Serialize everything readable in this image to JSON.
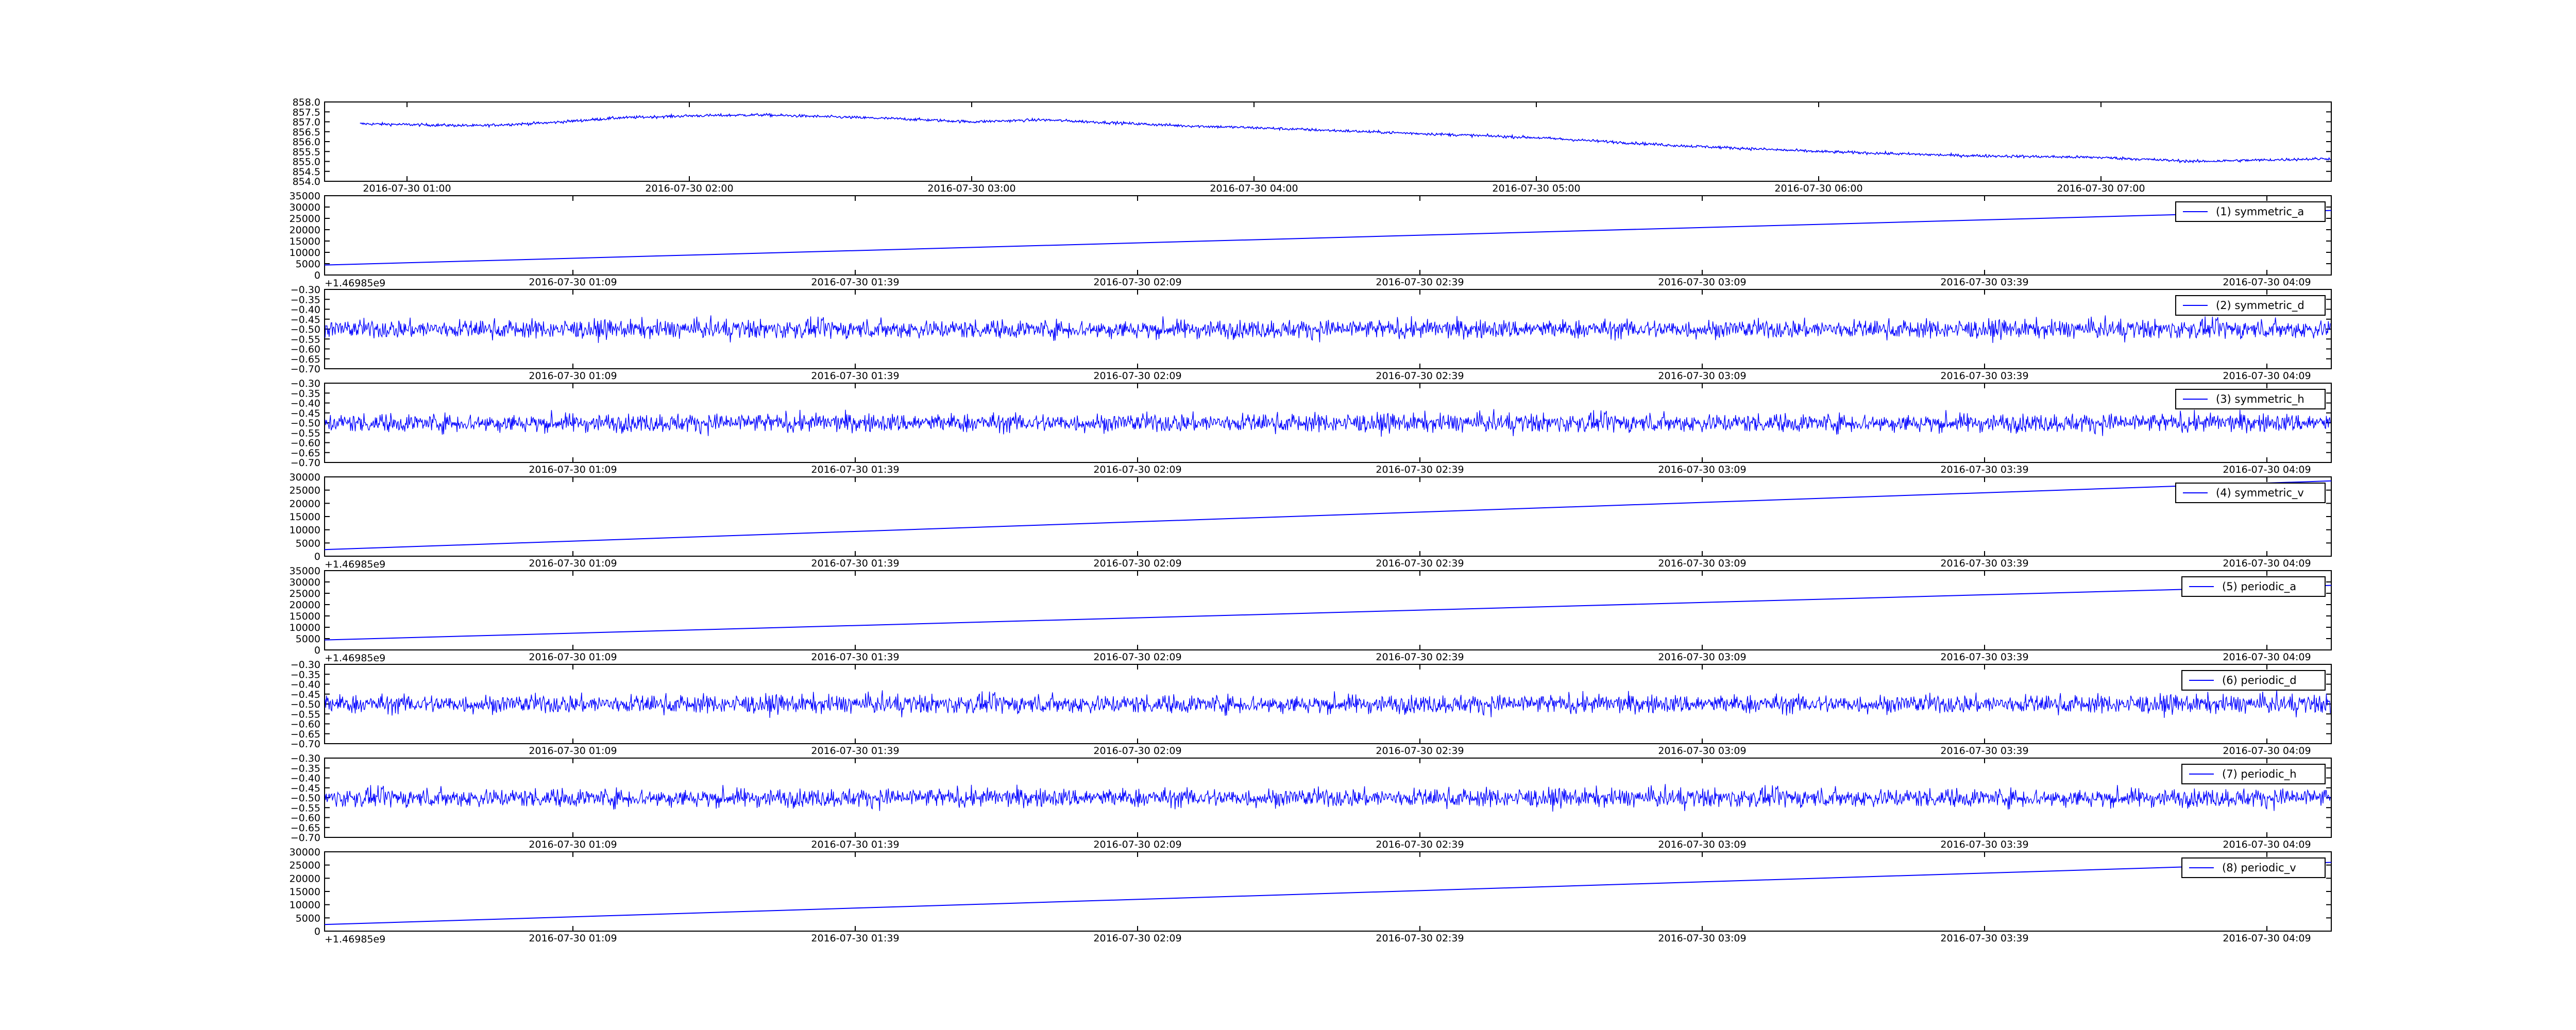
{
  "colors": {
    "line": "#0000ff",
    "axes": "#000000",
    "background": "#ffffff"
  },
  "chart_data": [
    {
      "type": "line",
      "ylim": [
        854.0,
        858.0
      ],
      "yticks": [
        "858.0",
        "857.5",
        "857.0",
        "856.5",
        "856.0",
        "855.5",
        "855.0",
        "854.5",
        "854.0"
      ],
      "xticks": [
        "2016-07-30 01:00",
        "2016-07-30 02:00",
        "2016-07-30 03:00",
        "2016-07-30 04:00",
        "2016-07-30 05:00",
        "2016-07-30 06:00",
        "2016-07-30 07:00"
      ],
      "offset_label": "",
      "legend": "",
      "trend": [
        {
          "t": "00:50",
          "y": 856.9
        },
        {
          "t": "01:15",
          "y": 856.8
        },
        {
          "t": "01:30",
          "y": 856.95
        },
        {
          "t": "01:45",
          "y": 857.2
        },
        {
          "t": "02:00",
          "y": 857.3
        },
        {
          "t": "02:15",
          "y": 857.35
        },
        {
          "t": "02:30",
          "y": 857.25
        },
        {
          "t": "02:45",
          "y": 857.15
        },
        {
          "t": "03:00",
          "y": 857.0
        },
        {
          "t": "03:15",
          "y": 857.1
        },
        {
          "t": "03:30",
          "y": 856.95
        },
        {
          "t": "03:45",
          "y": 856.8
        },
        {
          "t": "04:00",
          "y": 856.7
        },
        {
          "t": "04:30",
          "y": 856.45
        },
        {
          "t": "05:00",
          "y": 856.2
        },
        {
          "t": "05:30",
          "y": 855.8
        },
        {
          "t": "06:00",
          "y": 855.5
        },
        {
          "t": "06:30",
          "y": 855.3
        },
        {
          "t": "07:00",
          "y": 855.2
        },
        {
          "t": "07:20",
          "y": 855.0
        },
        {
          "t": "07:50",
          "y": 855.15
        }
      ],
      "noise_amplitude": 0.2
    },
    {
      "type": "line",
      "ylim": [
        0,
        35000
      ],
      "yticks": [
        "35000",
        "30000",
        "25000",
        "20000",
        "15000",
        "10000",
        "5000",
        "0"
      ],
      "xticks": [
        "2016-07-30 01:09",
        "2016-07-30 01:39",
        "2016-07-30 02:09",
        "2016-07-30 02:39",
        "2016-07-30 03:09",
        "2016-07-30 03:39",
        "2016-07-30 04:09"
      ],
      "offset_label": "+1.46985e9",
      "legend": "(1) symmetric_a",
      "values_start": 4400,
      "values_end": 28500
    },
    {
      "type": "line",
      "ylim": [
        -0.7,
        -0.3
      ],
      "yticks": [
        "−0.30",
        "−0.35",
        "−0.40",
        "−0.45",
        "−0.50",
        "−0.55",
        "−0.60",
        "−0.65",
        "−0.70"
      ],
      "xticks": [
        "2016-07-30 01:09",
        "2016-07-30 01:39",
        "2016-07-30 02:09",
        "2016-07-30 02:39",
        "2016-07-30 03:09",
        "2016-07-30 03:39",
        "2016-07-30 04:09"
      ],
      "offset_label": "",
      "legend": "(2) symmetric_d",
      "center": -0.5,
      "noise_amplitude": 0.08
    },
    {
      "type": "line",
      "ylim": [
        -0.7,
        -0.3
      ],
      "yticks": [
        "−0.30",
        "−0.35",
        "−0.40",
        "−0.45",
        "−0.50",
        "−0.55",
        "−0.60",
        "−0.65",
        "−0.70"
      ],
      "xticks": [
        "2016-07-30 01:09",
        "2016-07-30 01:39",
        "2016-07-30 02:09",
        "2016-07-30 02:39",
        "2016-07-30 03:09",
        "2016-07-30 03:39",
        "2016-07-30 04:09"
      ],
      "offset_label": "",
      "legend": "(3) symmetric_h",
      "center": -0.5,
      "noise_amplitude": 0.08
    },
    {
      "type": "line",
      "ylim": [
        0,
        30000
      ],
      "yticks": [
        "30000",
        "25000",
        "20000",
        "15000",
        "10000",
        "5000",
        "0"
      ],
      "xticks": [
        "2016-07-30 01:09",
        "2016-07-30 01:39",
        "2016-07-30 02:09",
        "2016-07-30 02:39",
        "2016-07-30 03:09",
        "2016-07-30 03:39",
        "2016-07-30 04:09"
      ],
      "offset_label": "+1.46985e9",
      "legend": "(4) symmetric_v",
      "values_start": 2500,
      "values_end": 28500
    },
    {
      "type": "line",
      "ylim": [
        0,
        35000
      ],
      "yticks": [
        "35000",
        "30000",
        "25000",
        "20000",
        "15000",
        "10000",
        "5000",
        "0"
      ],
      "xticks": [
        "2016-07-30 01:09",
        "2016-07-30 01:39",
        "2016-07-30 02:09",
        "2016-07-30 02:39",
        "2016-07-30 03:09",
        "2016-07-30 03:39",
        "2016-07-30 04:09"
      ],
      "offset_label": "+1.46985e9",
      "legend": "(5) periodic_a",
      "values_start": 4400,
      "values_end": 28500
    },
    {
      "type": "line",
      "ylim": [
        -0.7,
        -0.3
      ],
      "yticks": [
        "−0.30",
        "−0.35",
        "−0.40",
        "−0.45",
        "−0.50",
        "−0.55",
        "−0.60",
        "−0.65",
        "−0.70"
      ],
      "xticks": [
        "2016-07-30 01:09",
        "2016-07-30 01:39",
        "2016-07-30 02:09",
        "2016-07-30 02:39",
        "2016-07-30 03:09",
        "2016-07-30 03:39",
        "2016-07-30 04:09"
      ],
      "offset_label": "",
      "legend": "(6) periodic_d",
      "center": -0.5,
      "noise_amplitude": 0.08
    },
    {
      "type": "line",
      "ylim": [
        -0.7,
        -0.3
      ],
      "yticks": [
        "−0.30",
        "−0.35",
        "−0.40",
        "−0.45",
        "−0.50",
        "−0.55",
        "−0.60",
        "−0.65",
        "−0.70"
      ],
      "xticks": [
        "2016-07-30 01:09",
        "2016-07-30 01:39",
        "2016-07-30 02:09",
        "2016-07-30 02:39",
        "2016-07-30 03:09",
        "2016-07-30 03:39",
        "2016-07-30 04:09"
      ],
      "offset_label": "",
      "legend": "(7) periodic_h",
      "center": -0.5,
      "noise_amplitude": 0.08
    },
    {
      "type": "line",
      "ylim": [
        0,
        30000
      ],
      "yticks": [
        "30000",
        "25000",
        "20000",
        "15000",
        "10000",
        "5000",
        "0"
      ],
      "xticks": [
        "2016-07-30 01:09",
        "2016-07-30 01:39",
        "2016-07-30 02:09",
        "2016-07-30 02:39",
        "2016-07-30 03:09",
        "2016-07-30 03:39",
        "2016-07-30 04:09"
      ],
      "offset_label": "+1.46985e9",
      "legend": "(8) periodic_v",
      "values_start": 2500,
      "values_end": 26000
    }
  ]
}
